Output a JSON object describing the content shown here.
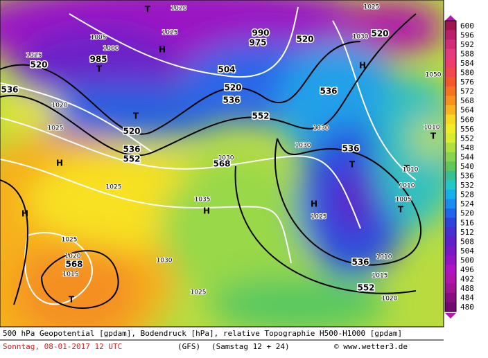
{
  "map": {
    "labels": [
      "1020",
      "1025",
      "T",
      "1005",
      "1025",
      "H",
      "1000",
      "985",
      "T",
      "1025",
      "520",
      "520",
      "520",
      "1030",
      "H",
      "990",
      "975",
      "504",
      "520",
      "536",
      "552",
      "536",
      "536",
      "1020",
      "1025",
      "520",
      "536",
      "552",
      "T",
      "H",
      "568",
      "1030",
      "1030",
      "1030",
      "536",
      "T",
      "T",
      "1010",
      "1010",
      "1005",
      "T",
      "H",
      "1025",
      "H",
      "1025",
      "1035",
      "H",
      "1025",
      "1030",
      "1020",
      "568",
      "1015",
      "T",
      "536",
      "1010",
      "552",
      "1015",
      "1020",
      "1025",
      "1010",
      "T",
      "1050"
    ]
  },
  "legend": {
    "values": [
      600,
      596,
      592,
      588,
      584,
      580,
      576,
      572,
      568,
      564,
      560,
      556,
      552,
      548,
      544,
      540,
      536,
      532,
      528,
      524,
      520,
      516,
      512,
      508,
      504,
      500,
      496,
      492,
      488,
      484,
      480
    ],
    "colors": [
      "#a0144e",
      "#b8206a",
      "#d02c78",
      "#e23c7e",
      "#ee3c6c",
      "#f0484c",
      "#f25a2e",
      "#f47420",
      "#f6921e",
      "#f8b41e",
      "#f8d820",
      "#f0ec28",
      "#d8ec30",
      "#b0e040",
      "#88d450",
      "#60c85a",
      "#38c090",
      "#20c8c8",
      "#18b0e8",
      "#1a8ef0",
      "#2066e8",
      "#2c44d8",
      "#4630d0",
      "#6020c8",
      "#7a18c4",
      "#9414c4",
      "#ae14c0",
      "#b014a8",
      "#a01494",
      "#880e80",
      "#700a6c"
    ]
  },
  "footer": {
    "line1": "500 hPa Geopotential [gpdam], Bodendruck [hPa], relative Topographie H500-H1000 [gpdam]",
    "date": "Sonntag, 08-01-2017  12 UTC",
    "model": "(GFS)",
    "run": "(Samstag 12 + 24)",
    "credit": "© www.wetter3.de"
  }
}
